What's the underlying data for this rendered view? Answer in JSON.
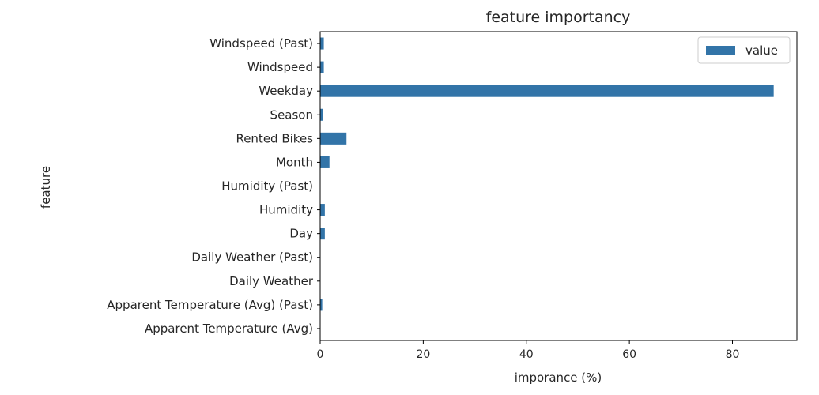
{
  "chart_data": {
    "type": "bar",
    "orientation": "horizontal",
    "title": "feature importancy",
    "xlabel": "imporance (%)",
    "ylabel": "feature",
    "xlim": [
      0,
      92.5
    ],
    "xticks": [
      0,
      20,
      40,
      60,
      80
    ],
    "categories": [
      "Apparent Temperature (Avg)",
      "Apparent Temperature (Avg) (Past)",
      "Daily Weather",
      "Daily Weather (Past)",
      "Day",
      "Humidity",
      "Humidity (Past)",
      "Month",
      "Rented Bikes",
      "Season",
      "Weekday",
      "Windspeed",
      "Windspeed (Past)"
    ],
    "series": [
      {
        "name": "value",
        "color": "#3274a8",
        "values": [
          0.0,
          0.4,
          0.0,
          0.0,
          0.9,
          0.9,
          0.0,
          1.8,
          5.1,
          0.6,
          88.0,
          0.7,
          0.7
        ]
      }
    ],
    "legend": {
      "position": "top-right",
      "labels": [
        "value"
      ]
    },
    "grid": false
  }
}
